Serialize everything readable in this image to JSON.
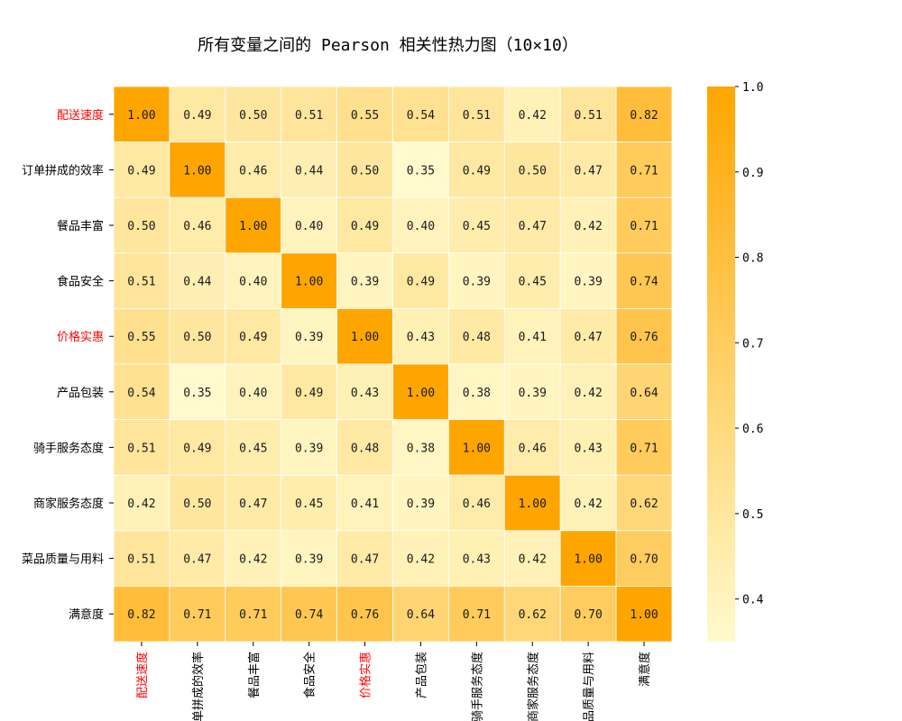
{
  "chart_data": {
    "type": "heatmap",
    "title": "所有变量之间的 Pearson 相关性热力图（10×10）",
    "categories": [
      "配送速度",
      "订单拼成的效率",
      "餐品丰富",
      "食品安全",
      "价格实惠",
      "产品包装",
      "骑手服务态度",
      "商家服务态度",
      "菜品质量与用料",
      "满意度"
    ],
    "highlighted": [
      "配送速度",
      "价格实惠"
    ],
    "highlight_color": "#ff0000",
    "matrix": [
      [
        1.0,
        0.49,
        0.5,
        0.51,
        0.55,
        0.54,
        0.51,
        0.42,
        0.51,
        0.82
      ],
      [
        0.49,
        1.0,
        0.46,
        0.44,
        0.5,
        0.35,
        0.49,
        0.5,
        0.47,
        0.71
      ],
      [
        0.5,
        0.46,
        1.0,
        0.4,
        0.49,
        0.4,
        0.45,
        0.47,
        0.42,
        0.71
      ],
      [
        0.51,
        0.44,
        0.4,
        1.0,
        0.39,
        0.49,
        0.39,
        0.45,
        0.39,
        0.74
      ],
      [
        0.55,
        0.5,
        0.49,
        0.39,
        1.0,
        0.43,
        0.48,
        0.41,
        0.47,
        0.76
      ],
      [
        0.54,
        0.35,
        0.4,
        0.49,
        0.43,
        1.0,
        0.38,
        0.39,
        0.42,
        0.64
      ],
      [
        0.51,
        0.49,
        0.45,
        0.39,
        0.48,
        0.38,
        1.0,
        0.46,
        0.43,
        0.71
      ],
      [
        0.42,
        0.5,
        0.47,
        0.45,
        0.41,
        0.39,
        0.46,
        1.0,
        0.42,
        0.62
      ],
      [
        0.51,
        0.47,
        0.42,
        0.39,
        0.47,
        0.42,
        0.43,
        0.42,
        1.0,
        0.7
      ],
      [
        0.82,
        0.71,
        0.71,
        0.74,
        0.76,
        0.64,
        0.71,
        0.62,
        0.7,
        1.0
      ]
    ],
    "value_range": [
      0.35,
      1.0
    ],
    "colormap": [
      "#fffacd",
      "#ffa500"
    ],
    "cell_border_color": "#ffffff",
    "colorbar_ticks": [
      "0.4",
      "0.5",
      "0.6",
      "0.7",
      "0.8",
      "0.9",
      "1.0"
    ],
    "grid": false
  }
}
